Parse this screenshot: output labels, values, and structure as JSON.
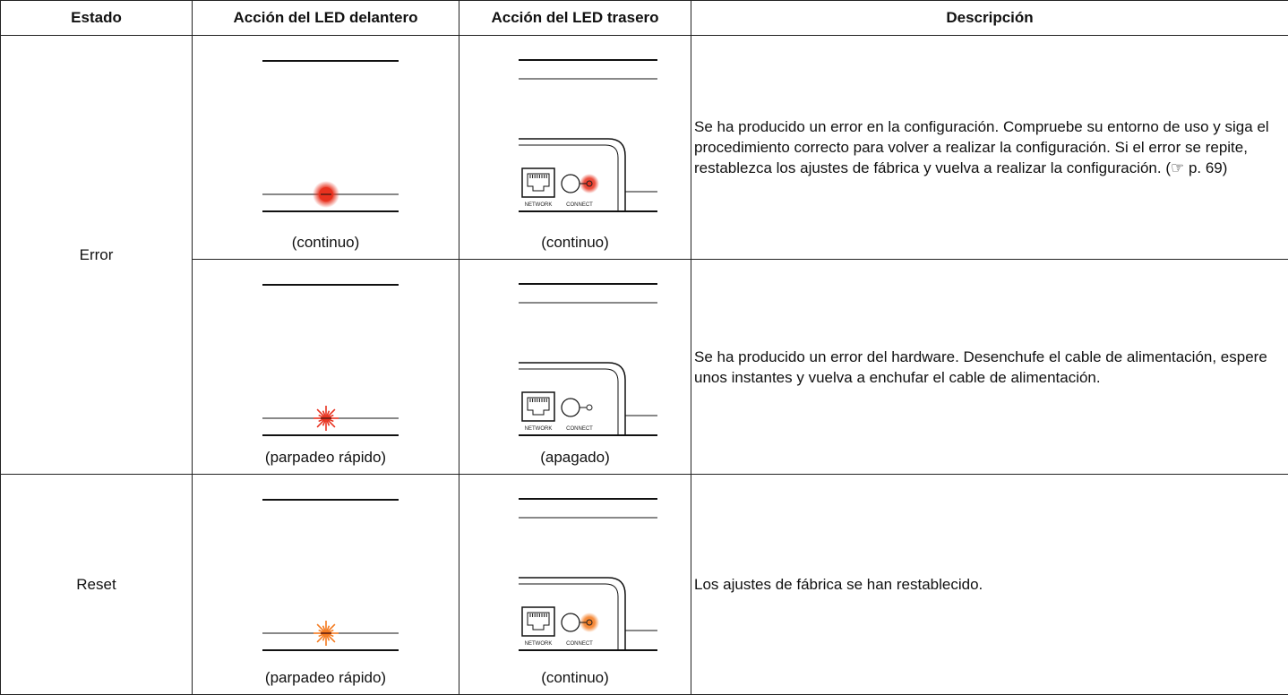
{
  "table": {
    "header": [
      "Estado",
      "Acción del LED delantero",
      "Acción del LED trasero",
      "Descripción"
    ],
    "groups": [
      {
        "state": "Error",
        "rows": [
          {
            "front_caption": "(continuo)",
            "front_led": {
              "mode": "steady",
              "color": "#e8321f"
            },
            "rear_caption": "(continuo)",
            "rear_led": {
              "mode": "on",
              "color": "#e8321f"
            },
            "description": "Se ha producido un error en la configuración. Compruebe su entorno de uso y siga el procedimiento correcto para volver a realizar la configuración. Si el error se repite, restablezca los ajustes de fábrica y vuelva a realizar la configuración. (☞ p. 69)"
          },
          {
            "front_caption": "(parpadeo rápido)",
            "front_led": {
              "mode": "blink",
              "color": "#e8321f"
            },
            "rear_caption": "(apagado)",
            "rear_led": {
              "mode": "off",
              "color": "#ffffff"
            },
            "description": "Se ha producido un error del hardware. Desenchufe el cable de alimentación, espere unos instantes y vuelva a enchufar el cable de alimentación."
          }
        ]
      },
      {
        "state": "Reset",
        "rows": [
          {
            "front_caption": "(parpadeo rápido)",
            "front_led": {
              "mode": "blink",
              "color": "#f47a1f"
            },
            "rear_caption": "(continuo)",
            "rear_led": {
              "mode": "on",
              "color": "#f47a1f"
            },
            "description": "Los ajustes de fábrica se han restablecido."
          }
        ]
      }
    ]
  },
  "rear_panel_labels": {
    "network": "NETWORK",
    "connect": "CONNECT"
  }
}
